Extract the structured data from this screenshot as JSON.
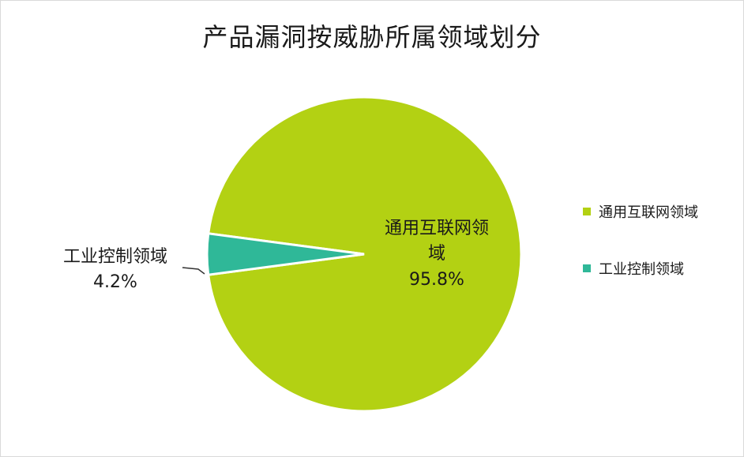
{
  "chart_data": {
    "type": "pie",
    "title": "产品漏洞按威胁所属领域划分",
    "slices": [
      {
        "name": "通用互联网领域",
        "label_line1": "通用互联网领",
        "label_line2": "域",
        "value": 95.8,
        "percent_label": "95.8%",
        "color": "#b3d113"
      },
      {
        "name": "工业控制领域",
        "label_line1": "工业控制领域",
        "value": 4.2,
        "percent_label": "4.2%",
        "color": "#2fb898"
      }
    ],
    "legend": {
      "position": "right"
    }
  }
}
